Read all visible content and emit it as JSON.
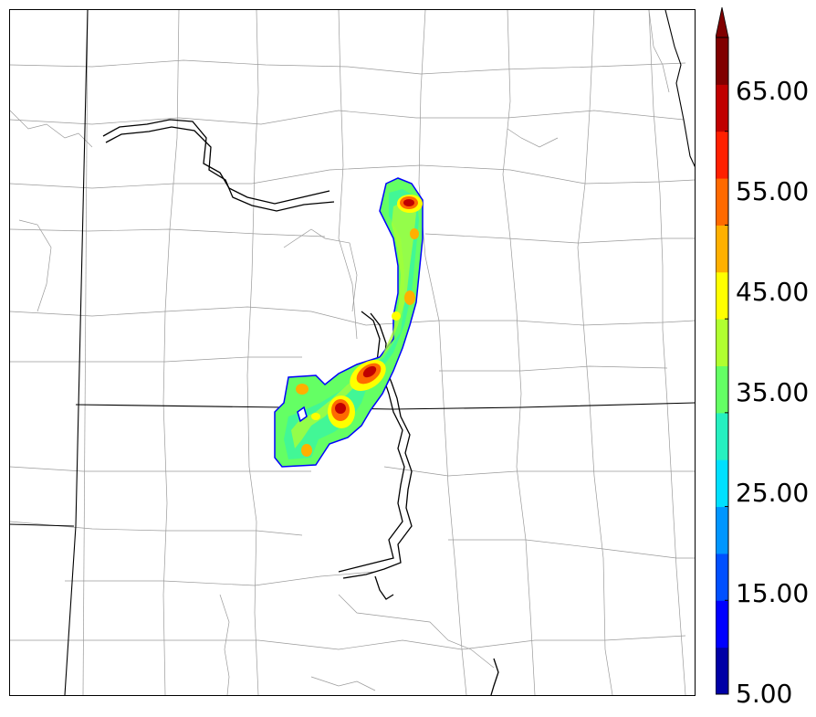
{
  "colorbar": {
    "labels": [
      "65.00",
      "55.00",
      "45.00",
      "35.00",
      "25.00",
      "15.00",
      "5.00"
    ],
    "colors": [
      "#0000a6",
      "#0000ff",
      "#0050ff",
      "#0096ff",
      "#00e0ff",
      "#26f0c0",
      "#64ff64",
      "#b0ff30",
      "#ffff00",
      "#ffb000",
      "#ff6a00",
      "#ff2000",
      "#c00000",
      "#800000"
    ],
    "extend_color": "#800000"
  },
  "map": {
    "border_color": "#000000",
    "state_line_color": "#000000",
    "county_line_color": "#9a9a9a",
    "river_color": "#000000"
  }
}
